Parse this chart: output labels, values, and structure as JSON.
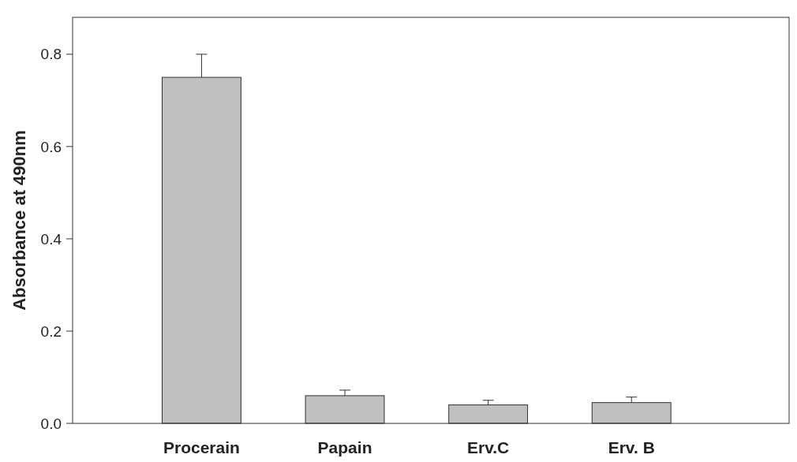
{
  "chart_data": {
    "type": "bar",
    "ylabel": "Absorbance at 490nm",
    "categories": [
      "Procerain",
      "Papain",
      "Erv.C",
      "Erv. B"
    ],
    "values": [
      0.75,
      0.06,
      0.04,
      0.045
    ],
    "errors": [
      0.05,
      0.012,
      0.01,
      0.012
    ],
    "color": "#c0c0c0",
    "ylim": [
      0,
      0.88
    ],
    "yticks": [
      {
        "value": 0,
        "label": "0.0"
      },
      {
        "value": 0.2,
        "label": "0.2"
      },
      {
        "value": 0.4,
        "label": "0.4"
      },
      {
        "value": 0.6,
        "label": "0.6"
      },
      {
        "value": 0.8,
        "label": "0.8"
      }
    ],
    "grid": false
  }
}
